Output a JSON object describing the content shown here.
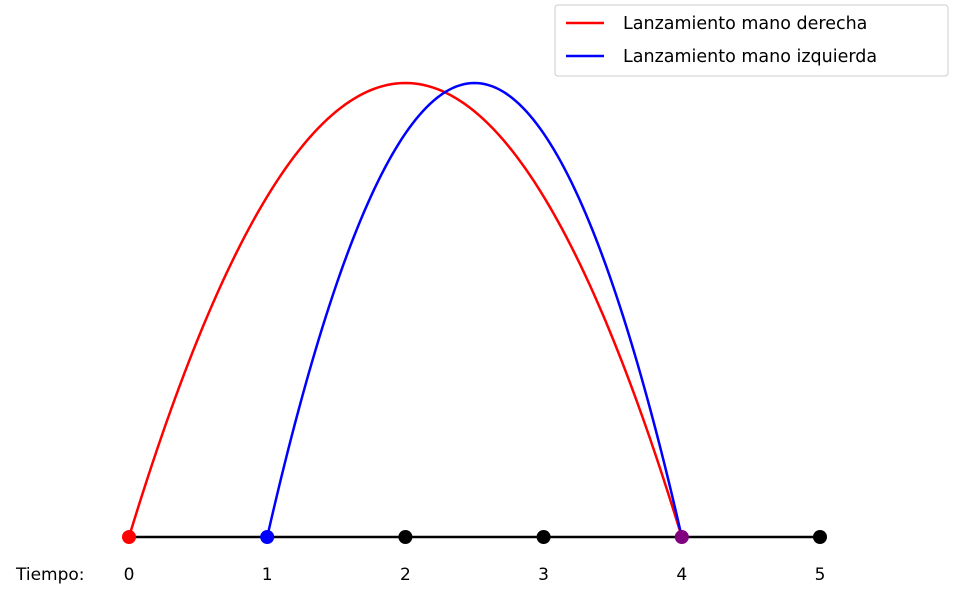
{
  "chart_data": {
    "type": "line",
    "title": "",
    "xlabel": "",
    "ylabel": "",
    "xlim": [
      0,
      5
    ],
    "ylim": [
      0,
      1
    ],
    "grid": false,
    "legend_position": "top-right",
    "axis_prefix": "Tiempo:",
    "ticks": [
      0,
      1,
      2,
      3,
      4,
      5
    ],
    "tick_labels": [
      "0",
      "1",
      "2",
      "3",
      "4",
      "5"
    ],
    "series": [
      {
        "name": "Lanzamiento mano derecha",
        "color": "#ff0000",
        "start": 0,
        "end": 4,
        "peak": 1
      },
      {
        "name": "Lanzamiento mano izquierda",
        "color": "#0000ff",
        "start": 1,
        "end": 4,
        "peak": 1
      }
    ],
    "markers": [
      {
        "x": 0,
        "color": "#ff0000"
      },
      {
        "x": 1,
        "color": "#0000ff"
      },
      {
        "x": 2,
        "color": "#000000"
      },
      {
        "x": 3,
        "color": "#000000"
      },
      {
        "x": 4,
        "color": "#800080"
      },
      {
        "x": 5,
        "color": "#000000"
      }
    ]
  }
}
